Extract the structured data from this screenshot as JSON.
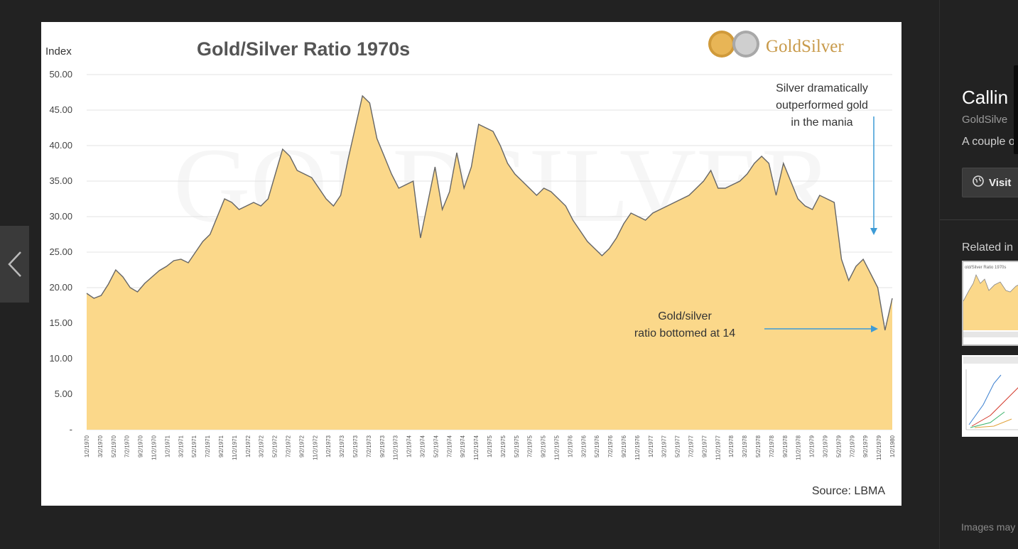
{
  "viewer": {
    "prev_icon": "chevron-left-icon"
  },
  "chart_data": {
    "type": "area",
    "title": "Gold/Silver Ratio 1970s",
    "ylabel": "Index",
    "source": "Source: LBMA",
    "logo_text": "GoldSilver",
    "ylim": [
      0,
      50
    ],
    "yticks": [
      "-",
      "5.00",
      "10.00",
      "15.00",
      "20.00",
      "25.00",
      "30.00",
      "35.00",
      "40.00",
      "45.00",
      "50.00"
    ],
    "xticks": [
      "1/2/1970",
      "3/2/1970",
      "5/2/1970",
      "7/2/1970",
      "9/2/1970",
      "11/2/1970",
      "1/2/1971",
      "3/2/1971",
      "5/2/1971",
      "7/2/1971",
      "9/2/1971",
      "11/2/1971",
      "1/2/1972",
      "3/2/1972",
      "5/2/1972",
      "7/2/1972",
      "9/2/1972",
      "11/2/1972",
      "1/2/1973",
      "3/2/1973",
      "5/2/1973",
      "7/2/1973",
      "9/2/1973",
      "11/2/1973",
      "1/2/1974",
      "3/2/1974",
      "5/2/1974",
      "7/2/1974",
      "9/2/1974",
      "11/2/1974",
      "1/2/1975",
      "3/2/1975",
      "5/2/1975",
      "7/2/1975",
      "9/2/1975",
      "11/2/1975",
      "1/2/1976",
      "3/2/1976",
      "5/2/1976",
      "7/2/1976",
      "9/2/1976",
      "11/2/1976",
      "1/2/1977",
      "3/2/1977",
      "5/2/1977",
      "7/2/1977",
      "9/2/1977",
      "11/2/1977",
      "1/2/1978",
      "3/2/1978",
      "5/2/1978",
      "7/2/1978",
      "9/2/1978",
      "11/2/1978",
      "1/2/1979",
      "3/2/1979",
      "5/2/1979",
      "7/2/1979",
      "9/2/1979",
      "11/2/1979",
      "1/2/1980"
    ],
    "x_start": "1970-01-02",
    "x_end": "1980-02-01",
    "values": [
      19.2,
      18.5,
      18.9,
      20.5,
      22.5,
      21.5,
      20.0,
      19.4,
      20.6,
      21.5,
      22.4,
      23.0,
      23.8,
      24.0,
      23.5,
      25.0,
      26.5,
      27.5,
      30.0,
      32.5,
      32.0,
      31.0,
      31.5,
      32.0,
      31.5,
      32.5,
      36.0,
      39.5,
      38.5,
      36.5,
      36.0,
      35.5,
      34.0,
      32.5,
      31.5,
      33.0,
      38.0,
      42.5,
      47.0,
      46.0,
      41.0,
      38.5,
      36.0,
      34.0,
      34.5,
      35.0,
      27.0,
      32.0,
      37.0,
      31.0,
      33.5,
      39.0,
      34.0,
      37.0,
      43.0,
      42.5,
      42.0,
      40.0,
      37.5,
      36.0,
      35.0,
      34.0,
      33.0,
      34.0,
      33.5,
      32.5,
      31.5,
      29.5,
      28.0,
      26.5,
      25.5,
      24.5,
      25.5,
      27.0,
      29.0,
      30.5,
      30.0,
      29.5,
      30.5,
      31.0,
      31.5,
      32.0,
      32.5,
      33.0,
      34.0,
      35.0,
      36.5,
      34.0,
      34.0,
      34.5,
      35.0,
      36.0,
      37.5,
      38.5,
      37.5,
      33.0,
      37.5,
      35.0,
      32.5,
      31.5,
      31.0,
      33.0,
      32.5,
      32.0,
      24.0,
      21.0,
      23.0,
      24.0,
      22.0,
      20.0,
      14.0,
      18.5
    ],
    "annotations": [
      {
        "lines": [
          "Silver dramatically",
          "outperformed gold",
          "in the mania"
        ]
      },
      {
        "lines": [
          "Gold/silver",
          "ratio bottomed at 14"
        ]
      }
    ]
  },
  "sidebar": {
    "title": "Callin",
    "site": "GoldSilve",
    "description": "A couple o",
    "visit_label": "Visit",
    "visit_icon": "globe-icon",
    "related_label": "Related in",
    "thumb1_caption": "old/Silver Ratio 1970s",
    "note": "Images may"
  },
  "colors": {
    "area_fill": "#fbd88a",
    "line": "#666666",
    "arrow": "#3d9bd6",
    "background": "#222222"
  }
}
